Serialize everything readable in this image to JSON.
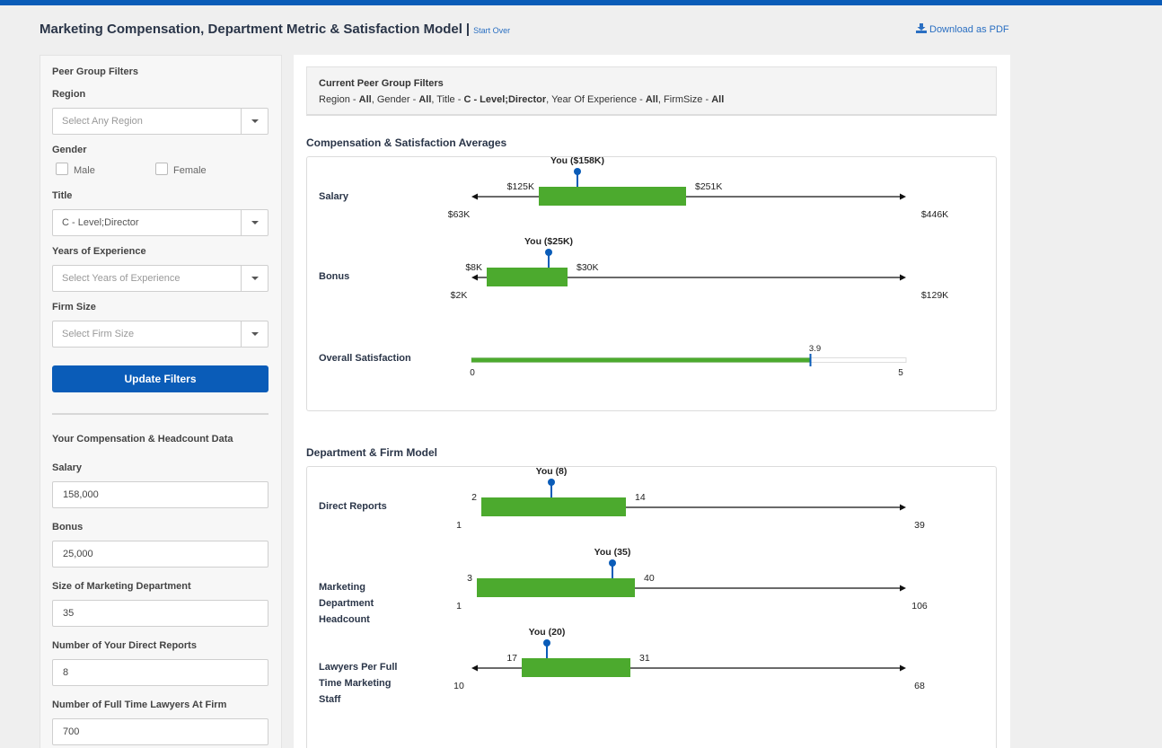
{
  "header": {
    "title": "Marketing Compensation, Department Metric & Satisfaction Model",
    "separator": "|",
    "start_over": "Start Over",
    "download": "Download as PDF"
  },
  "sidebar": {
    "peer_title": "Peer Group Filters",
    "region": {
      "label": "Region",
      "placeholder": "Select Any Region"
    },
    "gender": {
      "label": "Gender",
      "options": [
        "Male",
        "Female"
      ]
    },
    "title": {
      "label": "Title",
      "value": "C - Level;Director"
    },
    "experience": {
      "label": "Years of Experience",
      "placeholder": "Select Years of Experience"
    },
    "firm_size": {
      "label": "Firm Size",
      "placeholder": "Select Firm Size"
    },
    "update_button": "Update Filters",
    "your_data_title": "Your Compensation & Headcount Data",
    "fields": [
      {
        "label": "Salary",
        "value": "158,000"
      },
      {
        "label": "Bonus",
        "value": "25,000"
      },
      {
        "label": "Size of Marketing Department",
        "value": "35"
      },
      {
        "label": "Number of Your Direct Reports",
        "value": "8"
      },
      {
        "label": "Number of Full Time Lawyers At Firm",
        "value": "700"
      }
    ]
  },
  "current_filters": {
    "title": "Current Peer Group Filters",
    "items": [
      {
        "name": "Region",
        "value": "All"
      },
      {
        "name": "Gender",
        "value": "All"
      },
      {
        "name": "Title",
        "value": "C - Level;Director"
      },
      {
        "name": "Year Of Experience",
        "value": "All"
      },
      {
        "name": "FirmSize",
        "value": "All"
      }
    ]
  },
  "sections": {
    "comp_title": "Compensation & Satisfaction Averages",
    "dept_title": "Department & Firm Model"
  },
  "row_labels": {
    "salary": "Salary",
    "bonus": "Bonus",
    "satisfaction": "Overall Satisfaction",
    "direct_reports": "Direct Reports",
    "headcount": "Marketing Department Headcount",
    "lawyers": "Lawyers Per Full Time Marketing Staff"
  },
  "colors": {
    "accent": "#0a5cb8",
    "bar": "#4caa2e",
    "marker": "#0a5cb8"
  },
  "chart_data": [
    {
      "type": "bar",
      "name": "salary",
      "min": 63,
      "p25": 125,
      "p75": 251,
      "max": 446,
      "you": 158,
      "labels": {
        "min": "$63K",
        "p25": "$125K",
        "p75": "$251K",
        "max": "$446K",
        "you": "You ($158K)"
      }
    },
    {
      "type": "bar",
      "name": "bonus",
      "min": 2,
      "p25": 8,
      "p75": 30,
      "max": 129,
      "you": 25,
      "labels": {
        "min": "$2K",
        "p25": "$8K",
        "p75": "$30K",
        "max": "$129K",
        "you": "You ($25K)"
      }
    },
    {
      "type": "bar",
      "name": "satisfaction",
      "min": 0,
      "max": 5,
      "value": 3.9,
      "labels": {
        "min": "0",
        "max": "5",
        "value": "3.9"
      }
    },
    {
      "type": "bar",
      "name": "direct_reports",
      "min": 1,
      "p25": 2,
      "p75": 14,
      "max": 39,
      "you": 8,
      "labels": {
        "min": "1",
        "p25": "2",
        "p75": "14",
        "max": "39",
        "you": "You (8)"
      }
    },
    {
      "type": "bar",
      "name": "headcount",
      "min": 1,
      "p25": 3,
      "p75": 40,
      "max": 106,
      "you": 35,
      "labels": {
        "min": "1",
        "p25": "3",
        "p75": "40",
        "max": "106",
        "you": "You (35)"
      }
    },
    {
      "type": "bar",
      "name": "lawyers",
      "min": 10,
      "p25": 17,
      "p75": 31,
      "max": 68,
      "you": 20,
      "labels": {
        "min": "10",
        "p25": "17",
        "p75": "31",
        "max": "68",
        "you": "You (20)"
      }
    }
  ]
}
